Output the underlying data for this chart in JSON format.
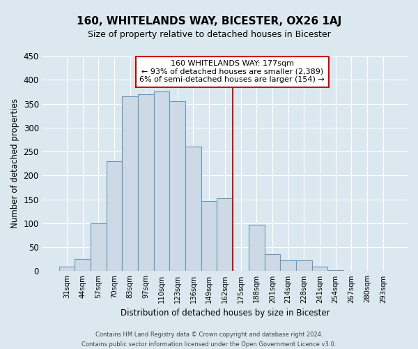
{
  "title": "160, WHITELANDS WAY, BICESTER, OX26 1AJ",
  "subtitle": "Size of property relative to detached houses in Bicester",
  "xlabel": "Distribution of detached houses by size in Bicester",
  "ylabel": "Number of detached properties",
  "footer_lines": [
    "Contains HM Land Registry data © Crown copyright and database right 2024.",
    "Contains public sector information licensed under the Open Government Licence v3.0."
  ],
  "bar_labels": [
    "31sqm",
    "44sqm",
    "57sqm",
    "70sqm",
    "83sqm",
    "97sqm",
    "110sqm",
    "123sqm",
    "136sqm",
    "149sqm",
    "162sqm",
    "175sqm",
    "188sqm",
    "201sqm",
    "214sqm",
    "228sqm",
    "241sqm",
    "254sqm",
    "267sqm",
    "280sqm",
    "293sqm"
  ],
  "bar_values": [
    10,
    25,
    100,
    230,
    365,
    370,
    375,
    355,
    260,
    147,
    153,
    0,
    97,
    35,
    22,
    22,
    10,
    2,
    1,
    0,
    1
  ],
  "bar_color": "#cdd9e5",
  "bar_edge_color": "#6699bb",
  "reference_line_x_label": "175sqm",
  "reference_line_color": "#cc0000",
  "annotation_title": "160 WHITELANDS WAY: 177sqm",
  "annotation_line1": "← 93% of detached houses are smaller (2,389)",
  "annotation_line2": "6% of semi-detached houses are larger (154) →",
  "annotation_box_edge_color": "#cc0000",
  "ylim": [
    0,
    450
  ],
  "yticks": [
    0,
    50,
    100,
    150,
    200,
    250,
    300,
    350,
    400,
    450
  ],
  "plot_bg_color": "#dce8f0",
  "fig_bg_color": "#dce8f0",
  "grid_color": "#ffffff",
  "title_fontsize": 11,
  "subtitle_fontsize": 9
}
